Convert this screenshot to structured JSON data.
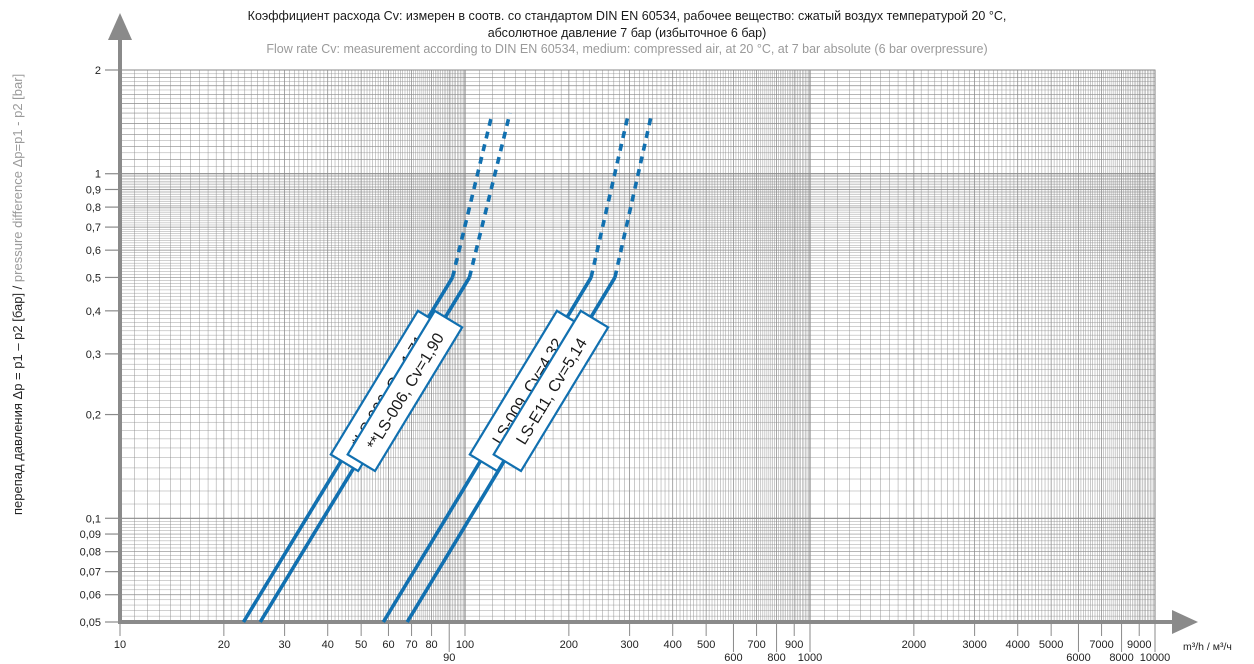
{
  "chart_data": {
    "type": "line",
    "title_ru_line1": "Коэффициент расхода Cv: измерен в соотв. со стандартом DIN EN 60534, рабочее вещество: сжатый воздух температурой 20 °C,",
    "title_ru_line2": "абсолютное давление 7 бар (избыточное 6 бар)",
    "title_en": "Flow rate Cv: measurement according to DIN EN 60534, medium: compressed air, at 20 °C, at 7 bar absolute (6 bar overpressure)",
    "ylabel_ru": "перепад давления Δp = p1 – p2 [бар] / ",
    "ylabel_en": "pressure difference Δp=p1 - p2 [bar]",
    "xlabel": "m³/h / м³/ч",
    "x_scale": "log",
    "y_scale": "log",
    "xlim": [
      10,
      10000
    ],
    "ylim": [
      0.05,
      2
    ],
    "x_ticks_upper": [
      {
        "v": 10,
        "t": "10"
      },
      {
        "v": 20,
        "t": "20"
      },
      {
        "v": 30,
        "t": "30"
      },
      {
        "v": 40,
        "t": "40"
      },
      {
        "v": 50,
        "t": "50"
      },
      {
        "v": 60,
        "t": "60"
      },
      {
        "v": 70,
        "t": "70"
      },
      {
        "v": 80,
        "t": "80"
      },
      {
        "v": 100,
        "t": "100"
      },
      {
        "v": 200,
        "t": "200"
      },
      {
        "v": 300,
        "t": "300"
      },
      {
        "v": 400,
        "t": "400"
      },
      {
        "v": 500,
        "t": "500"
      },
      {
        "v": 700,
        "t": "700"
      },
      {
        "v": 900,
        "t": "900"
      },
      {
        "v": 2000,
        "t": "2000"
      },
      {
        "v": 3000,
        "t": "3000"
      },
      {
        "v": 4000,
        "t": "4000"
      },
      {
        "v": 5000,
        "t": "5000"
      },
      {
        "v": 7000,
        "t": "7000"
      },
      {
        "v": 9000,
        "t": "9000"
      }
    ],
    "x_ticks_lower": [
      {
        "v": 90,
        "t": "90"
      },
      {
        "v": 600,
        "t": "600"
      },
      {
        "v": 800,
        "t": "800"
      },
      {
        "v": 1000,
        "t": "1000"
      },
      {
        "v": 6000,
        "t": "6000"
      },
      {
        "v": 8000,
        "t": "8000"
      },
      {
        "v": 10000,
        "t": "10000"
      }
    ],
    "y_ticks": [
      {
        "v": 2,
        "t": "2"
      },
      {
        "v": 1,
        "t": "1"
      },
      {
        "v": 0.9,
        "t": "0,9"
      },
      {
        "v": 0.8,
        "t": "0,8"
      },
      {
        "v": 0.7,
        "t": "0,7"
      },
      {
        "v": 0.6,
        "t": "0,6"
      },
      {
        "v": 0.5,
        "t": "0,5"
      },
      {
        "v": 0.4,
        "t": "0,4"
      },
      {
        "v": 0.3,
        "t": "0,3"
      },
      {
        "v": 0.2,
        "t": "0,2"
      },
      {
        "v": 0.1,
        "t": "0,1"
      },
      {
        "v": 0.09,
        "t": "0,09"
      },
      {
        "v": 0.08,
        "t": "0,08"
      },
      {
        "v": 0.07,
        "t": "0,07"
      },
      {
        "v": 0.06,
        "t": "0,06"
      },
      {
        "v": 0.05,
        "t": "0,05"
      }
    ],
    "series": [
      {
        "name": "*LS-006, Cv=1,71",
        "solid": [
          [
            22.8,
            0.05
          ],
          [
            92,
            0.5
          ]
        ],
        "dashed": [
          [
            92,
            0.5
          ],
          [
            120,
            1.5
          ]
        ]
      },
      {
        "name": "**LS-006, Cv=1,90",
        "solid": [
          [
            25.5,
            0.05
          ],
          [
            103,
            0.5
          ]
        ],
        "dashed": [
          [
            103,
            0.5
          ],
          [
            135,
            1.5
          ]
        ]
      },
      {
        "name": "LS-009, Cv=4,32",
        "solid": [
          [
            58,
            0.05
          ],
          [
            232,
            0.5
          ]
        ],
        "dashed": [
          [
            232,
            0.5
          ],
          [
            298,
            1.5
          ]
        ]
      },
      {
        "name": "LS-E11, Cv=5,14",
        "solid": [
          [
            68,
            0.05
          ],
          [
            272,
            0.5
          ]
        ],
        "dashed": [
          [
            272,
            0.5
          ],
          [
            348,
            1.5
          ]
        ]
      }
    ],
    "colors": {
      "line": "#1170b0",
      "grid": "#8a8a8a",
      "axis": "#8a8a8a"
    }
  }
}
